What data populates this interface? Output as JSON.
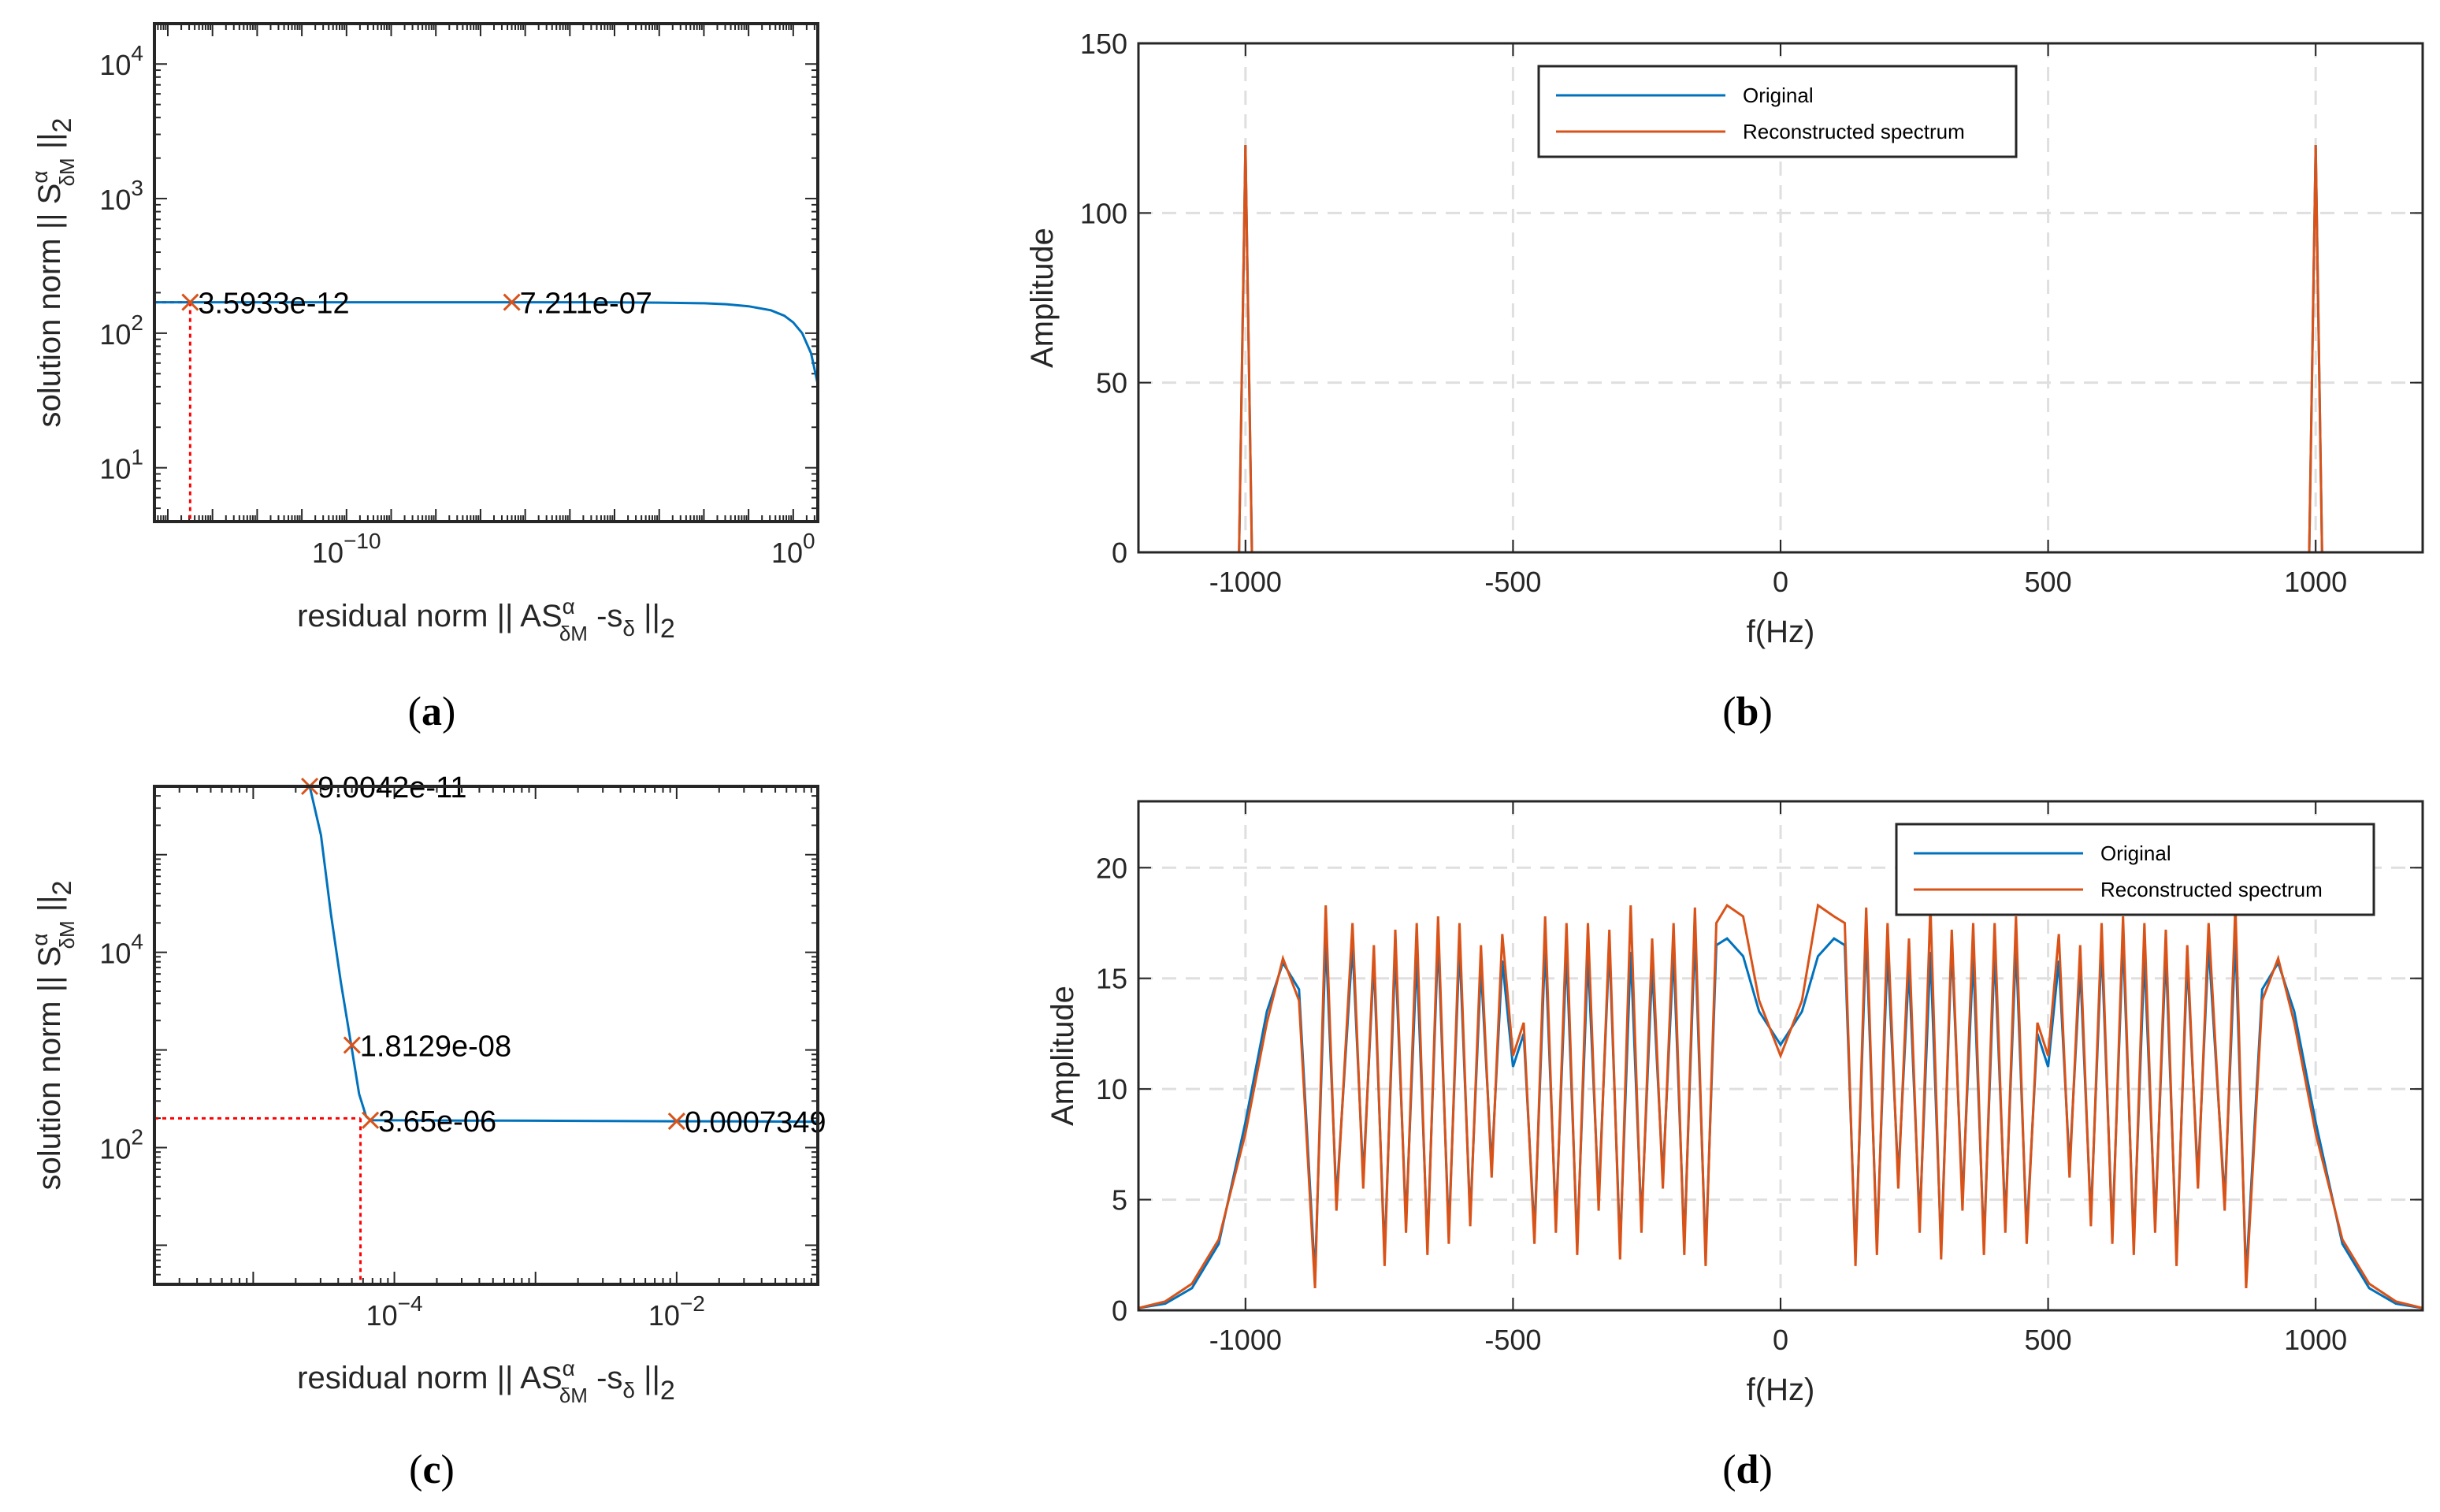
{
  "captions": {
    "a": "(a)",
    "b": "(b)",
    "c": "(c)",
    "d": "(d)"
  },
  "colors": {
    "original": "#0072BD",
    "reconstructed": "#D95319",
    "marker": "#D95319",
    "guide": "#FF0000",
    "grid": "#DFDFDF"
  },
  "axis_text": {
    "a": {
      "xlabel_main": "residual norm || AS",
      "xlabel_alpha": "α",
      "xlabel_sub": "δM",
      "xlabel_rest": " -s",
      "xlabel_delta": "δ",
      "xlabel_end": " ||",
      "xlabel_two": "2",
      "ylabel_main": "solution norm || S",
      "ylabel_alpha": "α",
      "ylabel_sub": "δM",
      "ylabel_end": " ||",
      "ylabel_two": "2",
      "xticks": [
        {
          "base": "10",
          "exp": "−10"
        },
        {
          "base": "10",
          "exp": "0"
        }
      ],
      "yticks": [
        {
          "base": "10",
          "exp": "1"
        },
        {
          "base": "10",
          "exp": "2"
        },
        {
          "base": "10",
          "exp": "3"
        },
        {
          "base": "10",
          "exp": "4"
        }
      ]
    },
    "c": {
      "xlabel_main": "residual norm || AS",
      "xlabel_alpha": "α",
      "xlabel_sub": "δM",
      "xlabel_rest": " -s",
      "xlabel_delta": "δ",
      "xlabel_end": " ||",
      "xlabel_two": "2",
      "ylabel_main": "solution norm || S",
      "ylabel_alpha": "α",
      "ylabel_sub": "δM",
      "ylabel_end": " ||",
      "ylabel_two": "2",
      "xticks": [
        {
          "base": "10",
          "exp": "−4"
        },
        {
          "base": "10",
          "exp": "−2"
        }
      ],
      "yticks": [
        {
          "base": "10",
          "exp": "2"
        },
        {
          "base": "10",
          "exp": "4"
        }
      ]
    }
  },
  "chart_data": [
    {
      "id": "a",
      "type": "line",
      "title": "",
      "scale": "loglog",
      "xlabel": "residual norm || AS_δM^α -s_δ ||_2",
      "ylabel": "solution norm || S_δM^α ||_2",
      "xlim_log10": [
        -14.3,
        0.55
      ],
      "ylim_log10": [
        0.6,
        4.3
      ],
      "x_log10": [
        -14.3,
        -13.5,
        -12,
        -10,
        -8,
        -6,
        -4,
        -3,
        -2,
        -1.5,
        -1,
        -0.5,
        -0.2,
        0,
        0.2,
        0.4,
        0.55
      ],
      "y_log10": [
        2.23,
        2.23,
        2.23,
        2.23,
        2.23,
        2.23,
        2.229,
        2.227,
        2.222,
        2.215,
        2.2,
        2.17,
        2.13,
        2.08,
        2.0,
        1.85,
        1.62
      ],
      "markers": [
        {
          "label": "3.5933e-12",
          "x_log10": -13.5,
          "y_log10": 2.23
        },
        {
          "label": "7.211e-07",
          "x_log10": -6.3,
          "y_log10": 2.23
        }
      ],
      "corner": {
        "x_log10": -13.5,
        "y_log10": 2.23
      }
    },
    {
      "id": "b",
      "type": "line",
      "title": "",
      "xlabel": "f(Hz)",
      "ylabel": "Amplitude",
      "xlim": [
        -1200,
        1200
      ],
      "ylim": [
        0,
        150
      ],
      "xticks": [
        -1000,
        -500,
        0,
        500,
        1000
      ],
      "yticks": [
        0,
        50,
        100,
        150
      ],
      "legend_position": "top-center",
      "series": [
        {
          "name": "Original",
          "x": [
            -1200,
            -1012,
            -1000,
            -988,
            988,
            1000,
            1012,
            1200
          ],
          "values": [
            0,
            0,
            120,
            0,
            0,
            120,
            0,
            0
          ]
        },
        {
          "name": "Reconstructed spectrum",
          "x": [
            -1200,
            -1012,
            -1000,
            -988,
            988,
            1000,
            1012,
            1200
          ],
          "values": [
            0,
            0,
            120,
            0,
            0,
            120,
            0,
            0
          ]
        }
      ]
    },
    {
      "id": "c",
      "type": "line",
      "title": "",
      "scale": "loglog",
      "xlabel": "residual norm || AS_δM^α -s_δ ||_2",
      "ylabel": "solution norm || S_δM^α ||_2",
      "xlim_log10": [
        -5.7,
        -1.0
      ],
      "ylim_log10": [
        0.6,
        5.7
      ],
      "x_log10": [
        -4.6,
        -4.52,
        -4.45,
        -4.38,
        -4.3,
        -4.25,
        -4.2,
        -4.17,
        -3.5,
        -3.0,
        -2.5,
        -2.0,
        -1.5,
        -1.0
      ],
      "y_log10": [
        5.7,
        5.2,
        4.4,
        3.7,
        3.0,
        2.55,
        2.32,
        2.28,
        2.277,
        2.275,
        2.272,
        2.27,
        2.268,
        2.265
      ],
      "markers": [
        {
          "label": "9.0042e-11",
          "x_log10": -4.6,
          "y_log10": 5.7
        },
        {
          "label": "1.8129e-08",
          "x_log10": -4.3,
          "y_log10": 3.05
        },
        {
          "label": "3.65e-06",
          "x_log10": -4.17,
          "y_log10": 2.28
        },
        {
          "label": "0.0007349",
          "x_log10": -2.0,
          "y_log10": 2.27
        }
      ],
      "corner": {
        "x_log10": -4.24,
        "y_log10": 2.3
      }
    },
    {
      "id": "d",
      "type": "line",
      "title": "",
      "xlabel": "f(Hz)",
      "ylabel": "Amplitude",
      "xlim": [
        -1200,
        1200
      ],
      "ylim": [
        0,
        23
      ],
      "xticks": [
        -1000,
        -500,
        0,
        500,
        1000
      ],
      "yticks": [
        0,
        5,
        10,
        15,
        20
      ],
      "legend_position": "top-right",
      "series": [
        {
          "name": "Original",
          "x": [
            -1200,
            -1150,
            -1100,
            -1050,
            -1000,
            -960,
            -930,
            -900,
            -870,
            -850,
            -830,
            -800,
            -780,
            -760,
            -740,
            -720,
            -700,
            -680,
            -660,
            -640,
            -620,
            -600,
            -580,
            -560,
            -540,
            -520,
            -500,
            -480,
            -460,
            -440,
            -420,
            -400,
            -380,
            -360,
            -340,
            -320,
            -300,
            -280,
            -260,
            -240,
            -220,
            -200,
            -180,
            -160,
            -140,
            -120,
            -100,
            -70,
            -40,
            0,
            40,
            70,
            100,
            120,
            140,
            160,
            180,
            200,
            220,
            240,
            260,
            280,
            300,
            320,
            340,
            360,
            380,
            400,
            420,
            440,
            460,
            480,
            500,
            520,
            540,
            560,
            580,
            600,
            620,
            640,
            660,
            680,
            700,
            720,
            740,
            760,
            780,
            800,
            830,
            850,
            870,
            900,
            930,
            960,
            1000,
            1050,
            1100,
            1150,
            1200
          ],
          "values": [
            0.1,
            0.3,
            1.0,
            3.0,
            8.5,
            13.5,
            15.7,
            14.5,
            1.5,
            16.8,
            5.0,
            16.5,
            6.0,
            15.8,
            2.5,
            16.2,
            4.0,
            16.0,
            3.0,
            16.8,
            3.5,
            16.5,
            4.2,
            15.5,
            6.5,
            15.8,
            11.0,
            12.5,
            3.5,
            16.5,
            4.0,
            16.2,
            3.0,
            16.0,
            5.0,
            16.5,
            2.8,
            16.2,
            4.0,
            15.5,
            6.0,
            16.2,
            3.0,
            17.0,
            2.5,
            16.5,
            16.8,
            16.0,
            13.5,
            12.0,
            13.5,
            16.0,
            16.8,
            16.5,
            2.5,
            17.0,
            3.0,
            16.2,
            6.0,
            15.5,
            4.0,
            16.2,
            2.8,
            16.5,
            5.0,
            16.0,
            3.0,
            16.2,
            4.0,
            16.5,
            3.5,
            12.5,
            11.0,
            15.8,
            6.5,
            15.5,
            4.2,
            16.5,
            3.5,
            16.8,
            3.0,
            16.0,
            4.0,
            16.2,
            2.5,
            15.8,
            6.0,
            16.5,
            5.0,
            16.8,
            1.5,
            14.5,
            15.7,
            13.5,
            8.5,
            3.0,
            1.0,
            0.3,
            0.1
          ]
        },
        {
          "name": "Reconstructed spectrum",
          "x": [
            -1200,
            -1150,
            -1100,
            -1050,
            -1000,
            -960,
            -930,
            -900,
            -870,
            -850,
            -830,
            -800,
            -780,
            -760,
            -740,
            -720,
            -700,
            -680,
            -660,
            -640,
            -620,
            -600,
            -580,
            -560,
            -540,
            -520,
            -500,
            -480,
            -460,
            -440,
            -420,
            -400,
            -380,
            -360,
            -340,
            -320,
            -300,
            -280,
            -260,
            -240,
            -220,
            -200,
            -180,
            -160,
            -140,
            -120,
            -100,
            -70,
            -40,
            0,
            40,
            70,
            100,
            120,
            140,
            160,
            180,
            200,
            220,
            240,
            260,
            280,
            300,
            320,
            340,
            360,
            380,
            400,
            420,
            440,
            460,
            480,
            500,
            520,
            540,
            560,
            580,
            600,
            620,
            640,
            660,
            680,
            700,
            720,
            740,
            760,
            780,
            800,
            830,
            850,
            870,
            900,
            930,
            960,
            1000,
            1050,
            1100,
            1150,
            1200
          ],
          "values": [
            0.1,
            0.4,
            1.2,
            3.2,
            8.0,
            13.0,
            15.9,
            14.0,
            1.0,
            18.3,
            4.5,
            17.5,
            5.5,
            16.5,
            2.0,
            17.2,
            3.5,
            17.5,
            2.5,
            17.8,
            3.0,
            17.5,
            3.8,
            16.5,
            6.0,
            17.0,
            11.5,
            13.0,
            3.0,
            17.8,
            3.5,
            17.5,
            2.5,
            17.5,
            4.5,
            17.2,
            2.3,
            18.3,
            3.5,
            16.8,
            5.5,
            17.5,
            2.5,
            18.2,
            2.0,
            17.5,
            18.3,
            17.8,
            14.0,
            11.5,
            14.0,
            18.3,
            17.8,
            17.5,
            2.0,
            18.2,
            2.5,
            17.5,
            5.5,
            16.8,
            3.5,
            18.3,
            2.3,
            17.2,
            4.5,
            17.5,
            2.5,
            17.5,
            3.5,
            17.8,
            3.0,
            13.0,
            11.5,
            17.0,
            6.0,
            16.5,
            3.8,
            17.5,
            3.0,
            17.8,
            2.5,
            17.5,
            3.5,
            17.2,
            2.0,
            16.5,
            5.5,
            17.5,
            4.5,
            18.3,
            1.0,
            14.0,
            15.9,
            13.0,
            8.0,
            3.2,
            1.2,
            0.4,
            0.1
          ]
        }
      ]
    }
  ]
}
